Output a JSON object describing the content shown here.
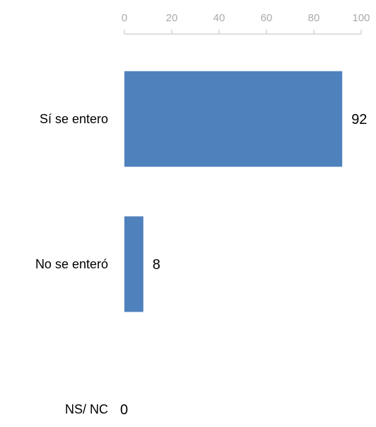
{
  "chart_data": {
    "type": "bar",
    "orientation": "horizontal",
    "categories": [
      "Sí se entero",
      "No se enteró",
      "NS/ NC"
    ],
    "values": [
      92,
      8,
      0
    ],
    "data_labels": [
      "92",
      "8",
      "0"
    ],
    "xlim": [
      0,
      100
    ],
    "x_ticks": [
      "0",
      "20",
      "40",
      "60",
      "80",
      "100"
    ],
    "axis_position": "top",
    "grid": false,
    "legend": "none",
    "colors": {
      "bar": "#4f81bd",
      "axis": "#bfbfbf",
      "tick_text": "#aaaaaa"
    }
  }
}
